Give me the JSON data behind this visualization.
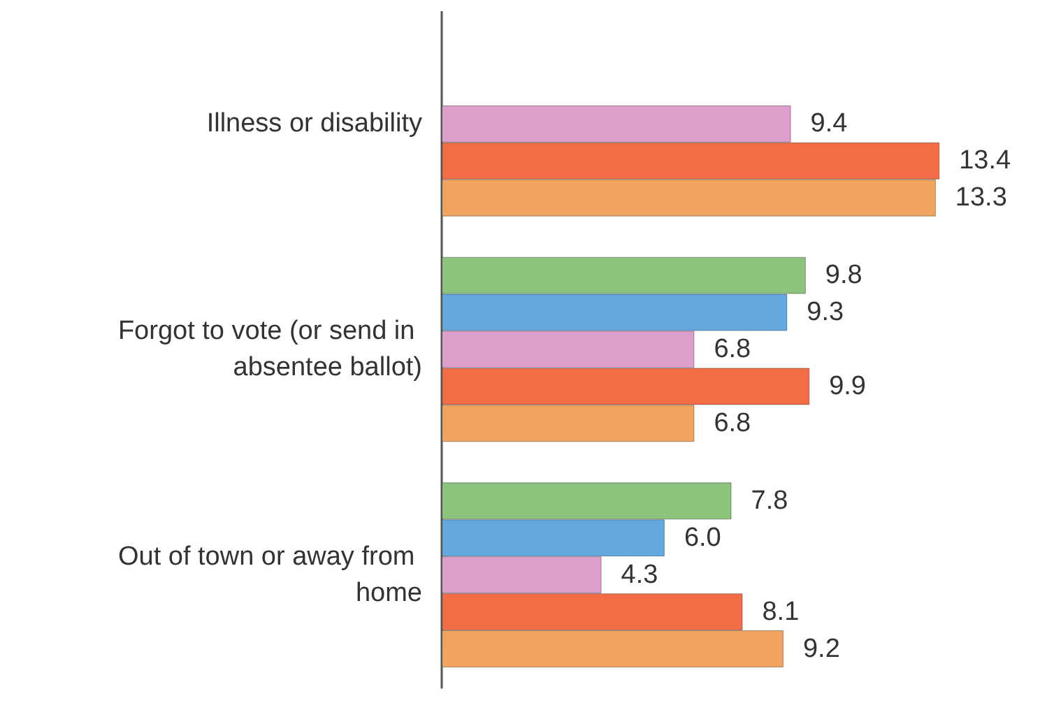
{
  "chart_data": {
    "type": "bar",
    "orientation": "horizontal",
    "categories": [
      "Illness or disability",
      "Forgot to vote (or send in absentee ballot)",
      "Out of town or away from home"
    ],
    "series": [
      {
        "color": "#8cc47e",
        "values": [
          null,
          9.8,
          7.8
        ],
        "value_labels": [
          null,
          "9.8",
          "7.8"
        ]
      },
      {
        "color": "#63a9e0",
        "values": [
          null,
          9.3,
          6.0
        ],
        "value_labels": [
          null,
          "9.3",
          "6.0"
        ]
      },
      {
        "color": "#dda0cd",
        "values": [
          9.4,
          6.8,
          4.3
        ],
        "value_labels": [
          "9.4",
          "6.8",
          "4.3"
        ]
      },
      {
        "color": "#f26c45",
        "values": [
          13.4,
          9.9,
          8.1
        ],
        "value_labels": [
          "13.4",
          "9.9",
          "8.1"
        ]
      },
      {
        "color": "#f1a45f",
        "values": [
          13.3,
          6.8,
          9.2
        ],
        "value_labels": [
          "13.3",
          "6.8",
          "9.2"
        ]
      }
    ]
  }
}
